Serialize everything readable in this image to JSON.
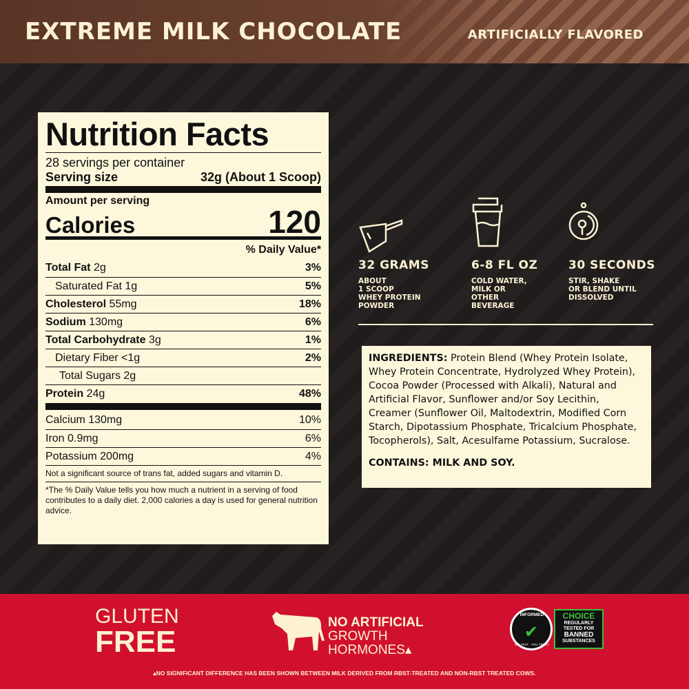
{
  "header": {
    "title": "EXTREME MILK CHOCOLATE",
    "subtitle": "ARTIFICIALLY FLAVORED",
    "color": "#6b4130"
  },
  "nutrition": {
    "title": "Nutrition Facts",
    "servings": "28 servings per container",
    "serving_size_label": "Serving size",
    "serving_size_value": "32g (About 1 Scoop)",
    "amount_label": "Amount per serving",
    "calories_label": "Calories",
    "calories_value": "120",
    "dv_header": "% Daily Value*",
    "rows": [
      {
        "name": "Total Fat",
        "amount": "2g",
        "dv": "3%",
        "bold": true,
        "indent": 0
      },
      {
        "name": "Saturated Fat",
        "amount": "1g",
        "dv": "5%",
        "bold": false,
        "indent": 1
      },
      {
        "name": "Cholesterol",
        "amount": "55mg",
        "dv": "18%",
        "bold": true,
        "indent": 0
      },
      {
        "name": "Sodium",
        "amount": "130mg",
        "dv": "6%",
        "bold": true,
        "indent": 0
      },
      {
        "name": "Total Carbohydrate",
        "amount": "3g",
        "dv": "1%",
        "bold": true,
        "indent": 0
      },
      {
        "name": "Dietary Fiber",
        "amount": "<1g",
        "dv": "2%",
        "bold": false,
        "indent": 1
      },
      {
        "name": "Total Sugars",
        "amount": "2g",
        "dv": "",
        "bold": false,
        "indent": 2
      },
      {
        "name": "Protein",
        "amount": "24g",
        "dv": "48%",
        "bold": true,
        "indent": 0
      }
    ],
    "minerals": [
      {
        "name": "Calcium 130mg",
        "dv": "10%"
      },
      {
        "name": "Iron 0.9mg",
        "dv": "6%"
      },
      {
        "name": "Potassium 200mg",
        "dv": "4%"
      }
    ],
    "note": "Not a significant source of trans fat, added sugars and vitamin D.",
    "footnote": "*The % Daily Value tells you how much a nutrient in a serving of food contributes to a daily diet. 2,000 calories a day is used for general nutrition advice."
  },
  "directions": [
    {
      "icon": "scoop-icon",
      "title": "32 GRAMS",
      "desc": "ABOUT\n1 SCOOP\nWHEY PROTEIN\nPOWDER"
    },
    {
      "icon": "shaker-bottle-icon",
      "title": "6-8 FL OZ",
      "desc": "COLD WATER,\nMILK OR\nOTHER\nBEVERAGE"
    },
    {
      "icon": "timer-icon",
      "title": "30 SECONDS",
      "desc": "STIR, SHAKE\nOR BLEND UNTIL\nDISSOLVED"
    }
  ],
  "ingredients": {
    "label": "INGREDIENTS:",
    "text": " Protein Blend (Whey Protein Isolate, Whey Protein Concentrate, Hydrolyzed Whey Protein), Cocoa Powder (Processed with Alkali), Natural and Artificial Flavor, Sunflower and/or Soy Lecithin, Creamer (Sunflower Oil, Maltodextrin, Modified Corn Starch, Dipotassium Phosphate, Tricalcium Phosphate, Tocopherols), Salt, Acesulfame Potassium, Sucralose.",
    "contains": "CONTAINS: MILK AND SOY."
  },
  "footer": {
    "gluten_1": "GLUTEN",
    "gluten_2": "FREE",
    "hormones_1": "NO ARTIFICIAL",
    "hormones_2": "GROWTH",
    "hormones_3": "HORMONES▴",
    "badge": {
      "ring": "INFORMED",
      "ring_bottom": "WE TEST · YOU TRUST",
      "title": "CHOICE",
      "l1": "REGULARLY",
      "l2": "TESTED FOR",
      "l3": "BANNED",
      "l4": "SUBSTANCES"
    },
    "disclaimer": "▴NO SIGNIFICANT DIFFERENCE HAS BEEN SHOWN BETWEEN MILK DERIVED FROM RBST-TREATED AND NON-RBST TREATED COWS.",
    "color": "#d0102e"
  }
}
